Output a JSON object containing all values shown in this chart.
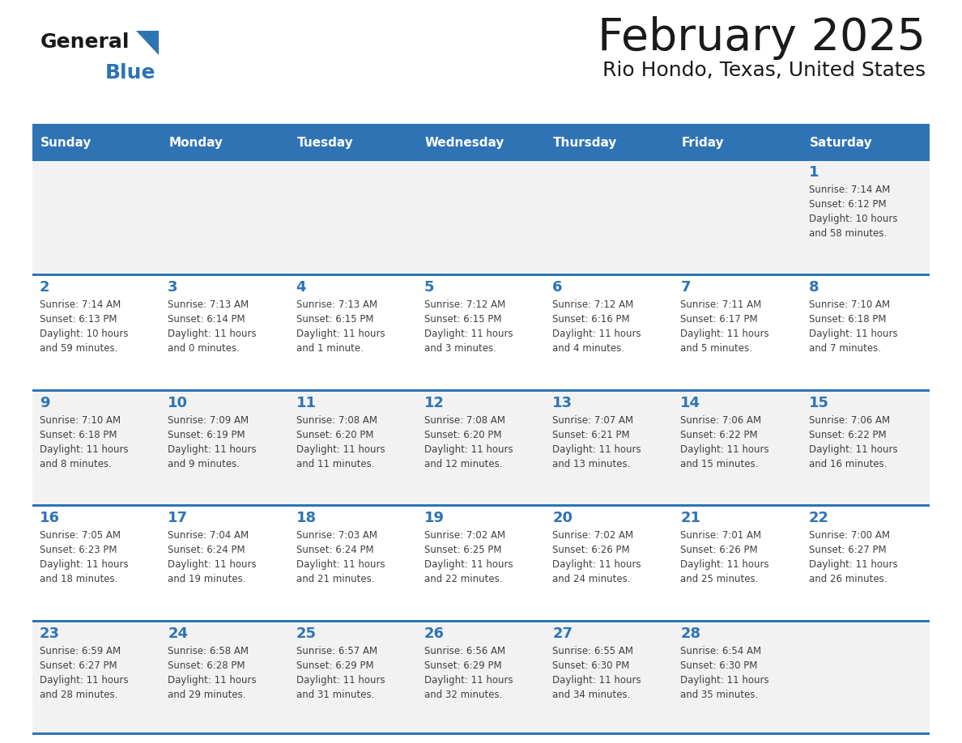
{
  "title": "February 2025",
  "subtitle": "Rio Hondo, Texas, United States",
  "header_bg": "#2e74b5",
  "header_text_color": "#ffffff",
  "day_names": [
    "Sunday",
    "Monday",
    "Tuesday",
    "Wednesday",
    "Thursday",
    "Friday",
    "Saturday"
  ],
  "cell_bg_even": "#f2f2f2",
  "cell_bg_odd": "#ffffff",
  "grid_line_color": "#2e74b5",
  "day_num_color": "#2e74b5",
  "info_text_color": "#404040",
  "logo_general_color": "#1a1a1a",
  "logo_blue_color": "#2e74b5",
  "title_color": "#1a1a1a",
  "calendar_data": [
    [
      null,
      null,
      null,
      null,
      null,
      null,
      {
        "day": "1",
        "sunrise": "7:14 AM",
        "sunset": "6:12 PM",
        "daylight": "10 hours\nand 58 minutes."
      }
    ],
    [
      {
        "day": "2",
        "sunrise": "7:14 AM",
        "sunset": "6:13 PM",
        "daylight": "10 hours\nand 59 minutes."
      },
      {
        "day": "3",
        "sunrise": "7:13 AM",
        "sunset": "6:14 PM",
        "daylight": "11 hours\nand 0 minutes."
      },
      {
        "day": "4",
        "sunrise": "7:13 AM",
        "sunset": "6:15 PM",
        "daylight": "11 hours\nand 1 minute."
      },
      {
        "day": "5",
        "sunrise": "7:12 AM",
        "sunset": "6:15 PM",
        "daylight": "11 hours\nand 3 minutes."
      },
      {
        "day": "6",
        "sunrise": "7:12 AM",
        "sunset": "6:16 PM",
        "daylight": "11 hours\nand 4 minutes."
      },
      {
        "day": "7",
        "sunrise": "7:11 AM",
        "sunset": "6:17 PM",
        "daylight": "11 hours\nand 5 minutes."
      },
      {
        "day": "8",
        "sunrise": "7:10 AM",
        "sunset": "6:18 PM",
        "daylight": "11 hours\nand 7 minutes."
      }
    ],
    [
      {
        "day": "9",
        "sunrise": "7:10 AM",
        "sunset": "6:18 PM",
        "daylight": "11 hours\nand 8 minutes."
      },
      {
        "day": "10",
        "sunrise": "7:09 AM",
        "sunset": "6:19 PM",
        "daylight": "11 hours\nand 9 minutes."
      },
      {
        "day": "11",
        "sunrise": "7:08 AM",
        "sunset": "6:20 PM",
        "daylight": "11 hours\nand 11 minutes."
      },
      {
        "day": "12",
        "sunrise": "7:08 AM",
        "sunset": "6:20 PM",
        "daylight": "11 hours\nand 12 minutes."
      },
      {
        "day": "13",
        "sunrise": "7:07 AM",
        "sunset": "6:21 PM",
        "daylight": "11 hours\nand 13 minutes."
      },
      {
        "day": "14",
        "sunrise": "7:06 AM",
        "sunset": "6:22 PM",
        "daylight": "11 hours\nand 15 minutes."
      },
      {
        "day": "15",
        "sunrise": "7:06 AM",
        "sunset": "6:22 PM",
        "daylight": "11 hours\nand 16 minutes."
      }
    ],
    [
      {
        "day": "16",
        "sunrise": "7:05 AM",
        "sunset": "6:23 PM",
        "daylight": "11 hours\nand 18 minutes."
      },
      {
        "day": "17",
        "sunrise": "7:04 AM",
        "sunset": "6:24 PM",
        "daylight": "11 hours\nand 19 minutes."
      },
      {
        "day": "18",
        "sunrise": "7:03 AM",
        "sunset": "6:24 PM",
        "daylight": "11 hours\nand 21 minutes."
      },
      {
        "day": "19",
        "sunrise": "7:02 AM",
        "sunset": "6:25 PM",
        "daylight": "11 hours\nand 22 minutes."
      },
      {
        "day": "20",
        "sunrise": "7:02 AM",
        "sunset": "6:26 PM",
        "daylight": "11 hours\nand 24 minutes."
      },
      {
        "day": "21",
        "sunrise": "7:01 AM",
        "sunset": "6:26 PM",
        "daylight": "11 hours\nand 25 minutes."
      },
      {
        "day": "22",
        "sunrise": "7:00 AM",
        "sunset": "6:27 PM",
        "daylight": "11 hours\nand 26 minutes."
      }
    ],
    [
      {
        "day": "23",
        "sunrise": "6:59 AM",
        "sunset": "6:27 PM",
        "daylight": "11 hours\nand 28 minutes."
      },
      {
        "day": "24",
        "sunrise": "6:58 AM",
        "sunset": "6:28 PM",
        "daylight": "11 hours\nand 29 minutes."
      },
      {
        "day": "25",
        "sunrise": "6:57 AM",
        "sunset": "6:29 PM",
        "daylight": "11 hours\nand 31 minutes."
      },
      {
        "day": "26",
        "sunrise": "6:56 AM",
        "sunset": "6:29 PM",
        "daylight": "11 hours\nand 32 minutes."
      },
      {
        "day": "27",
        "sunrise": "6:55 AM",
        "sunset": "6:30 PM",
        "daylight": "11 hours\nand 34 minutes."
      },
      {
        "day": "28",
        "sunrise": "6:54 AM",
        "sunset": "6:30 PM",
        "daylight": "11 hours\nand 35 minutes."
      },
      null
    ]
  ]
}
